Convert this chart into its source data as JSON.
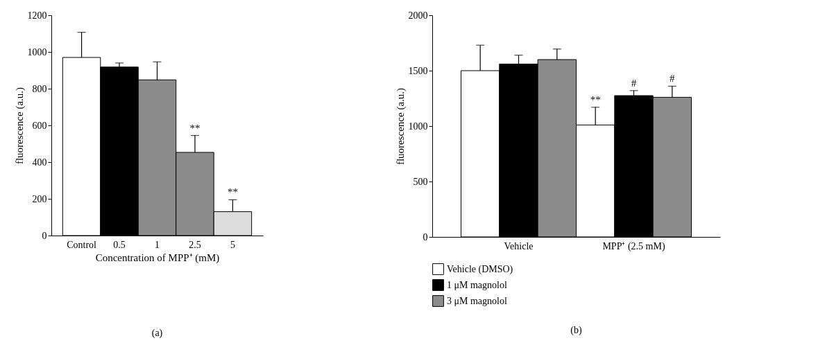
{
  "chart_data": [
    {
      "type": "bar",
      "ylabel": "fluorescence (a.u.)",
      "xlabel": "Concentration of MPP⁺ (mM)",
      "categories": [
        "Control",
        "0.5",
        "1",
        "2.5",
        "5"
      ],
      "values": [
        970,
        918,
        848,
        453,
        130
      ],
      "errors": [
        137,
        22,
        98,
        92,
        65
      ],
      "colors": [
        "#ffffff",
        "#000000",
        "#8c8c8c",
        "#8c8c8c",
        "#dcdcdc"
      ],
      "ylim": [
        0,
        1200
      ],
      "yticks": [
        0,
        200,
        400,
        600,
        800,
        1000,
        1200
      ],
      "grid": false,
      "legend": false,
      "annotations": [
        {
          "text": "**",
          "x": "2.5",
          "y": 545
        },
        {
          "text": "**",
          "x": "5",
          "y": 195
        },
        "(a)"
      ]
    },
    {
      "type": "bar",
      "ylabel": "fluorescence (a.u.)",
      "categories": [
        "Vehicle",
        "MPP⁺ (2.5 mM)"
      ],
      "series": [
        {
          "name": "Vehicle (DMSO)",
          "color": "#ffffff",
          "values": [
            1500,
            1010
          ],
          "errors": [
            230,
            160
          ]
        },
        {
          "name": "1 μM magnolol",
          "color": "#000000",
          "values": [
            1560,
            1275
          ],
          "errors": [
            80,
            45
          ]
        },
        {
          "name": "3 μM magnolol",
          "color": "#8c8c8c",
          "values": [
            1600,
            1260
          ],
          "errors": [
            95,
            100
          ]
        }
      ],
      "ylim": [
        0,
        2000
      ],
      "yticks": [
        0,
        500,
        1000,
        1500,
        2000
      ],
      "grid": false,
      "legend": "bottom",
      "annotations": [
        "**",
        "#",
        "#",
        "(b)"
      ]
    }
  ]
}
